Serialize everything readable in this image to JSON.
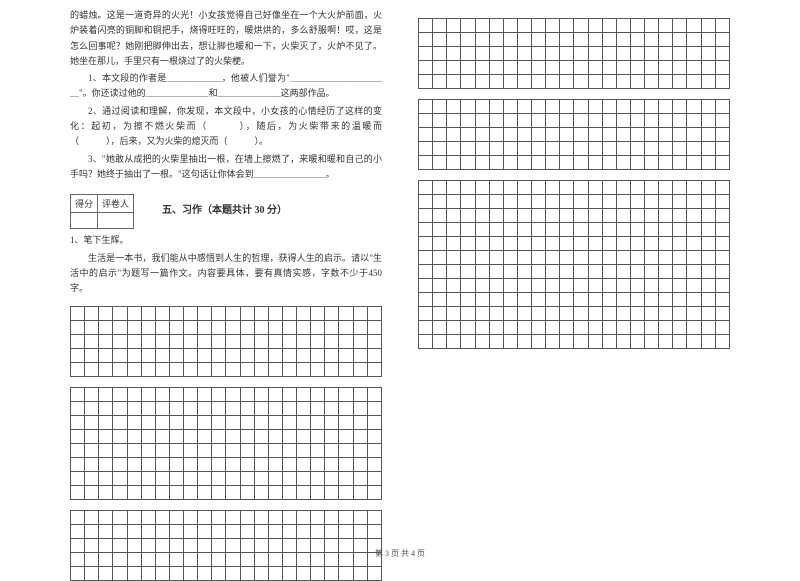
{
  "passage": {
    "p1": "的蜡烛。这是一道奇异的火光！小女孩觉得自己好像坐在一个大火炉前面，火炉装着闪亮的铜脚和铜把手，烧得旺旺的，暖烘烘的，多么舒服啊！哎，这是怎么回事呢？她刚把脚伸出去，想让脚也暖和一下，火柴灭了，火炉不见了。她坐在那儿，手里只有一根烧过了的火柴梗。",
    "q1a": "1、本文段的作者是＿＿＿＿＿＿，他被人们誉为\"＿＿＿＿＿＿＿＿＿＿＿\"。你还读过他的＿＿＿＿＿＿＿和＿＿＿＿＿＿＿这两部作品。",
    "q2": "2、通过阅读和理解，你发现，本文段中，小女孩的心情经历了这样的变化：起初，为擦不燃火柴而（　　　），随后，为火柴带来的温暖而（　　　），后来，又为火柴的熄灭而（　　　）。",
    "q3": "3、\"她敢从成把的火柴里抽出一根，在墙上擦燃了，来暖和暖和自己的小手吗？她终于抽出了一根。\"这句话让你体会到＿＿＿＿＿＿＿＿。"
  },
  "score": {
    "h1": "得分",
    "h2": "评卷人"
  },
  "section5": {
    "title": "五、习作（本题共计 30 分）",
    "sub": "1、笔下生辉。",
    "prompt": "生活是一本书，我们能从中感悟到人生的哲理，获得人生的启示。请以\"生活中的启示\"为题写一篇作文。内容要具体，要有真情实感，字数不少于450字。"
  },
  "grid": {
    "cols": 22,
    "leftRowsBlock1": 5,
    "leftRowsBlock2": 8,
    "leftRowsBlock3": 5,
    "rightRowsBlock1": 5,
    "rightRowsBlock2": 5,
    "rightRowsBlock3": 12
  },
  "footer": "第 3 页 共 4 页"
}
